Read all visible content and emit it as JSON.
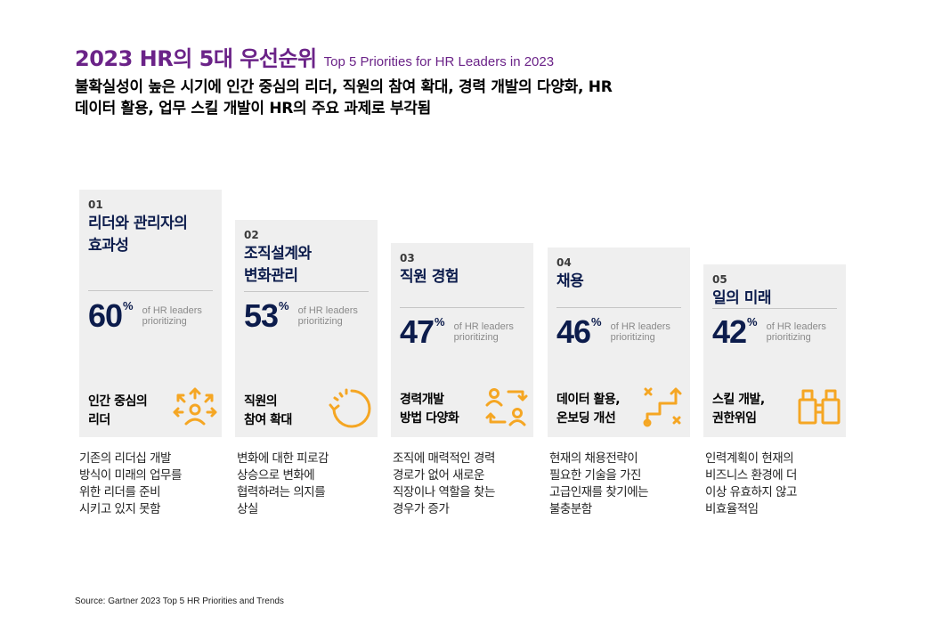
{
  "header": {
    "title_ko": "2023 HR의 5대 우선순위",
    "title_en": "Top 5 Priorities for HR Leaders in 2023",
    "subtitle_line1": "불확실성이 높은 시기에 인간 중심의 리더, 직원의 참여 확대, 경력 개발의 다양화, HR",
    "subtitle_line2": "데이터 활용, 업무 스킬 개발이 HR의 주요 과제로 부각됨"
  },
  "source": "Source: Gartner 2023 Top 5 HR Priorities and Trends",
  "colors": {
    "title": "#6b2388",
    "navy": "#0c1c4c",
    "icon": "#f5a623",
    "card_bg": "#efefef"
  },
  "chart_data": {
    "type": "bar",
    "categories": [
      "리더와 관리자의 효과성",
      "조직설계와 변화관리",
      "직원 경험",
      "채용",
      "일의 미래"
    ],
    "values": [
      60,
      53,
      47,
      46,
      42
    ],
    "unit": "%",
    "value_label": "of HR leaders prioritizing",
    "title": "2023 HR의 5대 우선순위"
  },
  "cards": [
    {
      "num": "01",
      "name_l1": "리더와 관리자의",
      "name_l2": "효과성",
      "pct": "60",
      "pct_sign": "%",
      "pct_l1": "of HR leaders",
      "pct_l2": "prioritizing",
      "sub_l1": "인간 중심의",
      "sub_l2": "리더",
      "icon": "people-arrows-icon",
      "desc_l1": "기존의 리더십 개발",
      "desc_l2": "방식이 미래의 업무를",
      "desc_l3": "위한 리더를 준비",
      "desc_l4": "시키고 있지 못함"
    },
    {
      "num": "02",
      "name_l1": "조직설계와",
      "name_l2": "변화관리",
      "pct": "53",
      "pct_sign": "%",
      "pct_l1": "of HR leaders",
      "pct_l2": "prioritizing",
      "sub_l1": "직원의",
      "sub_l2": "참여 확대",
      "icon": "circular-arrow-icon",
      "desc_l1": "변화에 대한 피로감",
      "desc_l2": "상승으로 변화에",
      "desc_l3": "협력하려는 의지를",
      "desc_l4": "상실"
    },
    {
      "num": "03",
      "name_l1": "직원 경험",
      "name_l2": "",
      "pct": "47",
      "pct_sign": "%",
      "pct_l1": "of HR leaders",
      "pct_l2": "prioritizing",
      "sub_l1": "경력개발",
      "sub_l2": "방법 다양화",
      "icon": "people-exchange-icon",
      "desc_l1": "조직에 매력적인 경력",
      "desc_l2": "경로가 없어 새로운",
      "desc_l3": "직장이나 역할을 찾는",
      "desc_l4": "경우가 증가"
    },
    {
      "num": "04",
      "name_l1": "채용",
      "name_l2": "",
      "pct": "46",
      "pct_sign": "%",
      "pct_l1": "of HR leaders",
      "pct_l2": "prioritizing",
      "sub_l1": "데이터 활용,",
      "sub_l2": "온보딩 개선",
      "icon": "path-strategy-icon",
      "desc_l1": "현재의 채용전략이",
      "desc_l2": "필요한 기술을 가진",
      "desc_l3": "고급인재를 찾기에는",
      "desc_l4": "불충분함"
    },
    {
      "num": "05",
      "name_l1": "일의 미래",
      "name_l2": "",
      "pct": "42",
      "pct_sign": "%",
      "pct_l1": "of HR leaders",
      "pct_l2": "prioritizing",
      "sub_l1": "스킬 개발,",
      "sub_l2": "권한위임",
      "icon": "binoculars-icon",
      "desc_l1": "인력계획이 현재의",
      "desc_l2": "비즈니스 환경에 더",
      "desc_l3": "이상 유효하지 않고",
      "desc_l4": "비효율적임"
    }
  ]
}
